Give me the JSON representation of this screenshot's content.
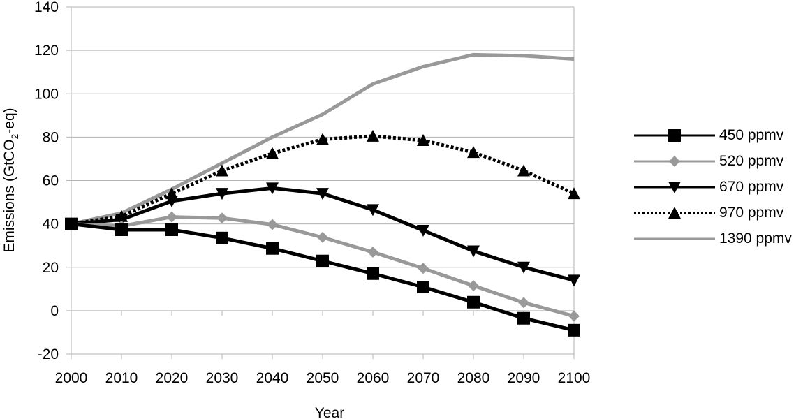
{
  "chart_data": {
    "type": "line",
    "title": "",
    "xlabel": "Year",
    "ylabel": "Emissions (GtCO2-eq)",
    "ylabel_parts": {
      "pre": "Emissions (GtCO",
      "sub": "2",
      "post": "-eq)"
    },
    "x": [
      2000,
      2010,
      2020,
      2030,
      2040,
      2050,
      2060,
      2070,
      2080,
      2090,
      2100
    ],
    "x_tick_labels": [
      "2000",
      "2010",
      "2020",
      "2030",
      "2040",
      "2050",
      "2060",
      "2070",
      "2080",
      "2090",
      "2100"
    ],
    "y_tick_labels": [
      "-20",
      "0",
      "20",
      "40",
      "60",
      "80",
      "100",
      "120",
      "140"
    ],
    "ylim": [
      -20,
      140
    ],
    "xlim": [
      2000,
      2100
    ],
    "grid": {
      "horizontal": true,
      "vertical": false,
      "color": "#b3b3b3"
    },
    "legend_position": "right",
    "series": [
      {
        "name": "450 ppmv",
        "color": "#000000",
        "style": "solid",
        "marker": "square",
        "values": [
          40,
          37.3,
          37.3,
          33.5,
          28.7,
          22.9,
          17.1,
          10.9,
          3.9,
          -3.5,
          -9.0
        ]
      },
      {
        "name": "520 ppmv",
        "color": "#999999",
        "style": "solid",
        "marker": "diamond",
        "values": [
          40,
          39.0,
          43.2,
          42.7,
          39.7,
          33.8,
          27.0,
          19.5,
          11.5,
          3.7,
          -2.5
        ]
      },
      {
        "name": "670 ppmv",
        "color": "#000000",
        "style": "solid",
        "marker": "triangle-down",
        "values": [
          40,
          42.0,
          50.5,
          54.0,
          56.5,
          54.0,
          46.5,
          37.0,
          27.5,
          20.0,
          14.0
        ]
      },
      {
        "name": "970 ppmv",
        "color": "#000000",
        "style": "dotted",
        "marker": "triangle-up",
        "values": [
          40,
          43.5,
          54.0,
          64.5,
          72.5,
          79.0,
          80.5,
          78.5,
          73.0,
          64.5,
          54.0
        ]
      },
      {
        "name": "1390 ppmv",
        "color": "#999999",
        "style": "solid",
        "marker": "none",
        "values": [
          40,
          45.0,
          56.0,
          68.0,
          80.0,
          90.5,
          104.5,
          112.5,
          118.0,
          117.5,
          116.0
        ]
      }
    ]
  },
  "legend": {
    "items": [
      {
        "label": "450 ppmv"
      },
      {
        "label": "520 ppmv"
      },
      {
        "label": "670 ppmv"
      },
      {
        "label": "970 ppmv"
      },
      {
        "label": "1390 ppmv"
      }
    ]
  }
}
